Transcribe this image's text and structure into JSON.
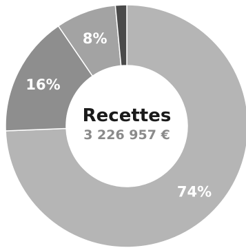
{
  "chart_data": {
    "type": "pie",
    "variant": "donut",
    "title": "Recettes",
    "total_label": "3 226 957 €",
    "slices": [
      {
        "label": "74%",
        "value": 74,
        "color": "#b5b5b5",
        "label_color": "#ffffff"
      },
      {
        "label": "16%",
        "value": 16,
        "color": "#8e8e8e",
        "label_color": "#ffffff"
      },
      {
        "label": "8%",
        "value": 8,
        "color": "#a3a3a3",
        "label_color": "#ffffff"
      },
      {
        "label": "",
        "value": 1.5,
        "color": "#4a4a4a",
        "label_color": "#ffffff"
      }
    ],
    "center_title_color": "#1a1a1a",
    "center_total_color": "#8a8a8a",
    "separator_color": "#ffffff"
  }
}
